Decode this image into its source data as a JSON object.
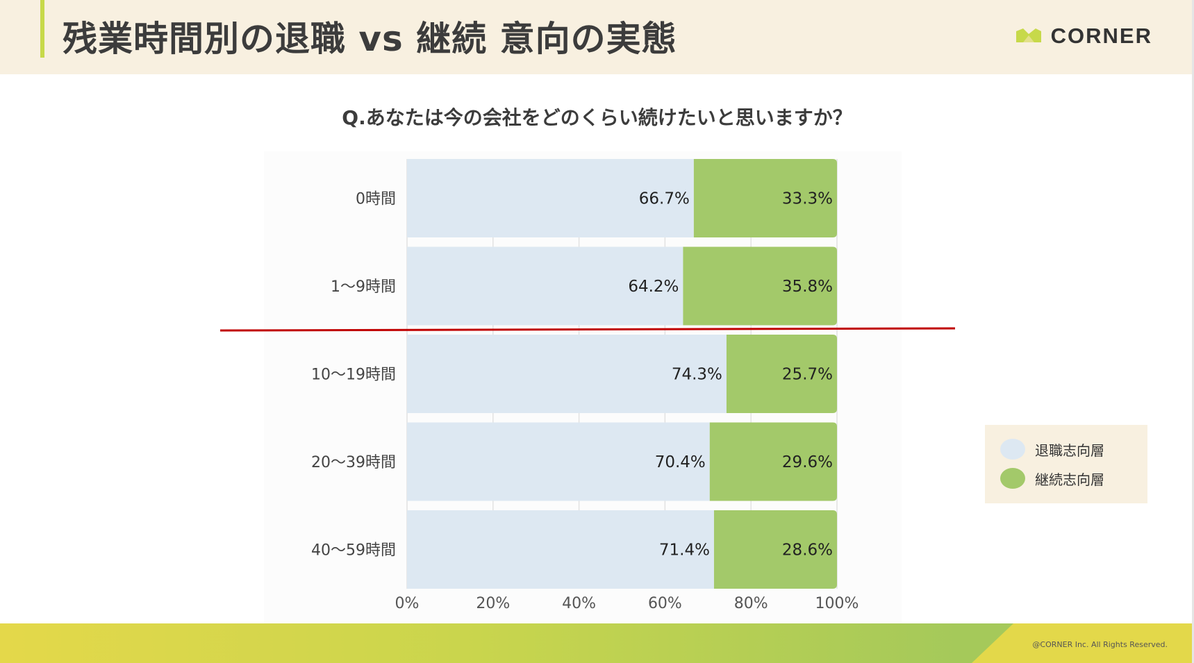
{
  "header": {
    "title": "残業時間別の退職 vs 継続 意向の実態",
    "brand": "CORNER"
  },
  "question": "Q.あなたは今の会社をどのくらい続けたいと思いますか？",
  "legend": [
    {
      "label": "退職志向層",
      "color": "#dde8f2"
    },
    {
      "label": "継続志向層",
      "color": "#a3c96a"
    }
  ],
  "copyright": "@CORNER Inc. All Rights Reserved.",
  "colors": {
    "header_bg": "#f8f0e0",
    "accent": "#c7d94a",
    "retire": "#dde8f2",
    "continue": "#a3c96a",
    "divider_line": "#c00000"
  },
  "chart_data": {
    "type": "bar",
    "orientation": "horizontal",
    "stacked": true,
    "categories": [
      "0時間",
      "1〜9時間",
      "10〜19時間",
      "20〜39時間",
      "40〜59時間"
    ],
    "series": [
      {
        "name": "退職志向層",
        "values": [
          66.7,
          64.2,
          74.3,
          70.4,
          71.4
        ],
        "labels": [
          "66.7%",
          "64.2%",
          "74.3%",
          "70.4%",
          "71.4%"
        ]
      },
      {
        "name": "継続志向層",
        "values": [
          33.3,
          35.8,
          25.7,
          29.6,
          28.6
        ],
        "labels": [
          "33.3%",
          "35.8%",
          "25.7%",
          "29.6%",
          "28.6%"
        ]
      }
    ],
    "xlim": [
      0,
      100
    ],
    "xticks": [
      "0%",
      "20%",
      "40%",
      "60%",
      "80%",
      "100%"
    ],
    "grid": true,
    "legend_position": "right",
    "annotation": "divider line between 1〜9時間 and 10〜19時間"
  }
}
